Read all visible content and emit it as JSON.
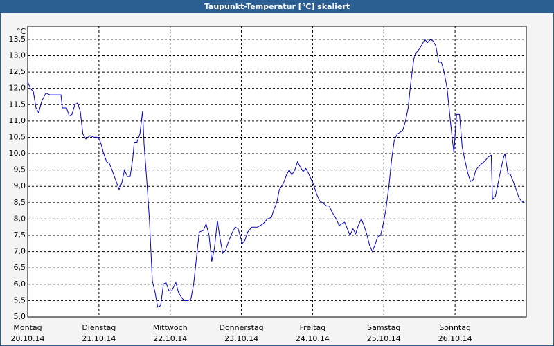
{
  "chart_data": {
    "type": "line",
    "title": "Taupunkt-Temperatur [°C] skaliert",
    "y_unit": "°C",
    "x": [
      0,
      0.9,
      1.9,
      2.8,
      3.7,
      4.7,
      6.1,
      7.5,
      9.3,
      11.2,
      11.7,
      13.1,
      14.0,
      14.9,
      15.9,
      16.8,
      17.7,
      18.6,
      19.6,
      21.0,
      22.4,
      23.8,
      24.7,
      25.6,
      26.6,
      27.5,
      28.4,
      29.4,
      30.8,
      31.7,
      32.6,
      33.6,
      34.5,
      35.4,
      35.9,
      36.8,
      37.8,
      38.7,
      39.2,
      40.1,
      41.0,
      42.0,
      42.9,
      43.8,
      44.8,
      45.7,
      46.6,
      47.6,
      48.5,
      49.9,
      50.8,
      51.8,
      52.7,
      54.1,
      55.0,
      55.9,
      57.3,
      57.8,
      59.2,
      60.1,
      61.1,
      62.0,
      62.9,
      63.9,
      64.8,
      65.7,
      66.7,
      67.6,
      69.0,
      69.9,
      70.9,
      72.3,
      73.2,
      74.1,
      75.5,
      77.4,
      79.3,
      80.7,
      82.1,
      83.0,
      83.9,
      84.8,
      86.2,
      87.2,
      88.1,
      89.0,
      90.0,
      90.9,
      91.8,
      92.8,
      93.7,
      94.6,
      95.6,
      96.5,
      97.4,
      98.4,
      99.3,
      100.7,
      101.6,
      102.6,
      104.0,
      104.9,
      105.8,
      106.8,
      107.7,
      108.6,
      109.6,
      110.5,
      111.4,
      112.4,
      113.3,
      114.2,
      115.2,
      116.1,
      117.0,
      117.9,
      118.9,
      119.8,
      120.7,
      121.7,
      122.6,
      123.5,
      124.5,
      125.4,
      126.3,
      127.3,
      128.2,
      129.1,
      130.1,
      131.0,
      131.9,
      132.9,
      133.8,
      134.7,
      135.7,
      136.6,
      137.5,
      138.5,
      139.4,
      140.3,
      141.3,
      142.2,
      143.1,
      143.6,
      144.5,
      145.5,
      146.4,
      147.3,
      148.3,
      149.2,
      150.1,
      151.0,
      152.4,
      153.8,
      155.2,
      156.2,
      156.6,
      157.6,
      158.5,
      159.4,
      160.4,
      160.8,
      161.8,
      162.7,
      163.6,
      164.6,
      165.5,
      166.4,
      167.4
    ],
    "series": [
      {
        "name": "Taupunkt-Temperatur",
        "color": "#0000c8",
        "values": [
          12.2,
          12.0,
          11.9,
          11.4,
          11.25,
          11.6,
          11.85,
          11.8,
          11.8,
          11.8,
          11.4,
          11.4,
          11.15,
          11.2,
          11.5,
          11.55,
          11.3,
          10.6,
          10.45,
          10.55,
          10.5,
          10.5,
          10.3,
          10.0,
          9.75,
          9.7,
          9.5,
          9.25,
          8.9,
          9.1,
          9.5,
          9.3,
          9.3,
          9.85,
          10.35,
          10.35,
          10.6,
          11.3,
          10.3,
          9.2,
          8.0,
          6.1,
          5.75,
          5.3,
          5.35,
          6.0,
          6.05,
          5.8,
          5.8,
          6.05,
          5.75,
          5.6,
          5.5,
          5.5,
          5.55,
          6.0,
          7.2,
          7.6,
          7.65,
          7.85,
          7.5,
          6.7,
          7.1,
          7.95,
          7.4,
          6.95,
          7.05,
          7.3,
          7.6,
          7.75,
          7.7,
          7.25,
          7.35,
          7.6,
          7.75,
          7.75,
          7.85,
          8.0,
          8.05,
          8.3,
          8.5,
          8.9,
          9.1,
          9.35,
          9.5,
          9.35,
          9.5,
          9.75,
          9.6,
          9.45,
          9.55,
          9.4,
          9.2,
          9.0,
          8.75,
          8.55,
          8.5,
          8.4,
          8.4,
          8.2,
          8.0,
          7.8,
          7.85,
          7.9,
          7.7,
          7.5,
          7.7,
          7.55,
          7.8,
          8.0,
          7.8,
          7.55,
          7.2,
          7.0,
          7.2,
          7.45,
          7.5,
          7.85,
          8.3,
          9.0,
          9.8,
          10.4,
          10.6,
          10.65,
          10.7,
          11.0,
          11.4,
          12.2,
          12.9,
          13.1,
          13.2,
          13.35,
          13.5,
          13.4,
          13.5,
          13.45,
          13.3,
          12.8,
          12.8,
          12.5,
          12.0,
          11.2,
          10.4,
          10.05,
          11.2,
          11.2,
          10.2,
          9.8,
          9.4,
          9.15,
          9.2,
          9.5,
          9.65,
          9.75,
          9.9,
          9.95,
          8.6,
          8.7,
          9.1,
          9.5,
          9.9,
          10.0,
          9.4,
          9.35,
          9.15,
          8.9,
          8.65,
          8.55,
          8.5
        ]
      }
    ],
    "xlim": [
      0,
      168
    ],
    "xticks": [
      {
        "value": 0,
        "label": "Montag",
        "date": "20.10.14"
      },
      {
        "value": 24,
        "label": "Dienstag",
        "date": "21.10.14"
      },
      {
        "value": 48,
        "label": "Mittwoch",
        "date": "22.10.14"
      },
      {
        "value": 72,
        "label": "Donnerstag",
        "date": "23.10.14"
      },
      {
        "value": 96,
        "label": "Freitag",
        "date": "24.10.14"
      },
      {
        "value": 120,
        "label": "Samstag",
        "date": "25.10.14"
      },
      {
        "value": 144,
        "label": "Sonntag",
        "date": "26.10.14"
      }
    ],
    "ylim": [
      5,
      13.9
    ],
    "yticks": [
      {
        "value": 5,
        "label": "5,0"
      },
      {
        "value": 5.5,
        "label": "5,5"
      },
      {
        "value": 6,
        "label": "6,0"
      },
      {
        "value": 6.5,
        "label": "6,5"
      },
      {
        "value": 7,
        "label": "7,0"
      },
      {
        "value": 7.5,
        "label": "7,5"
      },
      {
        "value": 8,
        "label": "8,0"
      },
      {
        "value": 8.5,
        "label": "8,5"
      },
      {
        "value": 9,
        "label": "9,0"
      },
      {
        "value": 9.5,
        "label": "9,5"
      },
      {
        "value": 10,
        "label": "10,0"
      },
      {
        "value": 10.5,
        "label": "10,5"
      },
      {
        "value": 11,
        "label": "11,0"
      },
      {
        "value": 11.5,
        "label": "11,5"
      },
      {
        "value": 12,
        "label": "12,0"
      },
      {
        "value": 12.5,
        "label": "12,5"
      },
      {
        "value": 13,
        "label": "13,0"
      },
      {
        "value": 13.5,
        "label": "13,5"
      }
    ],
    "grid": true
  }
}
